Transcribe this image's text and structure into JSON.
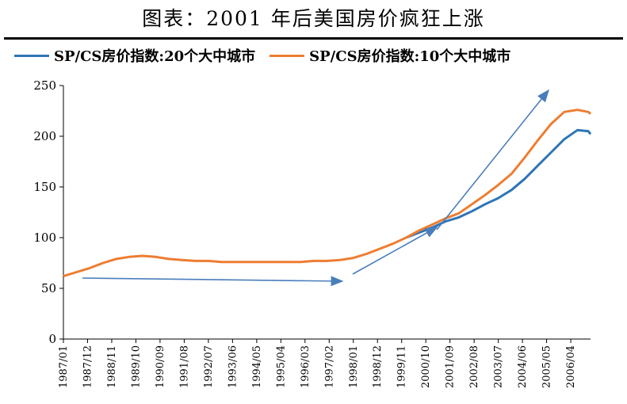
{
  "title": "图表：2001 年后美国房价疯狂上涨",
  "chart_data": {
    "type": "line",
    "ylim": [
      0,
      250
    ],
    "yticks": [
      0,
      50,
      100,
      150,
      200,
      250
    ],
    "xticks": [
      "1987/01",
      "1987/12",
      "1988/11",
      "1989/10",
      "1990/09",
      "1991/08",
      "1992/07",
      "1993/06",
      "1994/05",
      "1995/04",
      "1996/03",
      "1997/02",
      "1998/01",
      "1998/12",
      "1999/11",
      "2000/10",
      "2001/09",
      "2002/08",
      "2003/07",
      "2004/06",
      "2005/05",
      "2006/04"
    ],
    "series": [
      {
        "name": "SP/CS房价指数:20个大中城市",
        "color": "#2e75b6",
        "start": "2000/01",
        "points": [
          [
            "2000/01",
            100
          ],
          [
            "2000/07",
            105
          ],
          [
            "2001/01",
            110
          ],
          [
            "2001/07",
            116
          ],
          [
            "2002/01",
            120
          ],
          [
            "2002/07",
            126
          ],
          [
            "2003/01",
            133
          ],
          [
            "2003/07",
            139
          ],
          [
            "2004/01",
            147
          ],
          [
            "2004/07",
            158
          ],
          [
            "2005/01",
            171
          ],
          [
            "2005/07",
            184
          ],
          [
            "2006/01",
            197
          ],
          [
            "2006/07",
            206
          ],
          [
            "2006/12",
            205
          ],
          [
            "2007/01",
            202
          ]
        ]
      },
      {
        "name": "SP/CS房价指数:10个大中城市",
        "color": "#ed7d31",
        "start": "1987/01",
        "points": [
          [
            "1987/01",
            62
          ],
          [
            "1987/07",
            66
          ],
          [
            "1988/01",
            70
          ],
          [
            "1988/07",
            75
          ],
          [
            "1989/01",
            79
          ],
          [
            "1989/07",
            81
          ],
          [
            "1990/01",
            82
          ],
          [
            "1990/07",
            81
          ],
          [
            "1991/01",
            79
          ],
          [
            "1991/07",
            78
          ],
          [
            "1992/01",
            77
          ],
          [
            "1992/07",
            77
          ],
          [
            "1993/01",
            76
          ],
          [
            "1993/07",
            76
          ],
          [
            "1994/01",
            76
          ],
          [
            "1994/07",
            76
          ],
          [
            "1995/01",
            76
          ],
          [
            "1995/07",
            76
          ],
          [
            "1996/01",
            76
          ],
          [
            "1996/07",
            77
          ],
          [
            "1997/01",
            77
          ],
          [
            "1997/07",
            78
          ],
          [
            "1998/01",
            80
          ],
          [
            "1998/07",
            84
          ],
          [
            "1999/01",
            89
          ],
          [
            "1999/07",
            94
          ],
          [
            "2000/01",
            100
          ],
          [
            "2000/07",
            107
          ],
          [
            "2001/01",
            113
          ],
          [
            "2001/07",
            119
          ],
          [
            "2002/01",
            124
          ],
          [
            "2002/07",
            133
          ],
          [
            "2003/01",
            142
          ],
          [
            "2003/07",
            152
          ],
          [
            "2004/01",
            163
          ],
          [
            "2004/07",
            179
          ],
          [
            "2005/01",
            196
          ],
          [
            "2005/07",
            212
          ],
          [
            "2006/01",
            224
          ],
          [
            "2006/07",
            226
          ],
          [
            "2006/12",
            224
          ],
          [
            "2007/01",
            222
          ]
        ]
      }
    ]
  }
}
